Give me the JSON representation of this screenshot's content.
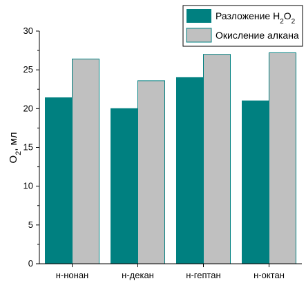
{
  "chart_data": {
    "type": "bar",
    "categories": [
      "н-нонан",
      "н-декан",
      "н-гептан",
      "н-октан"
    ],
    "series": [
      {
        "name": "Разложение H2O2",
        "name_parts": [
          "Разложение H",
          "2",
          "O",
          "2"
        ],
        "values": [
          21.4,
          20.0,
          24.0,
          21.0
        ],
        "color": "#008080"
      },
      {
        "name": "Окисление алкана",
        "values": [
          26.4,
          23.6,
          27.0,
          27.2
        ],
        "color": "#c0c0c0"
      }
    ],
    "ylabel_parts": [
      "O",
      "2",
      ", мл"
    ],
    "ylim": [
      0,
      30
    ],
    "yticks": [
      "0",
      "5",
      "10",
      "15",
      "20",
      "25",
      "30"
    ],
    "grid": false,
    "legend_position": "top-right"
  }
}
